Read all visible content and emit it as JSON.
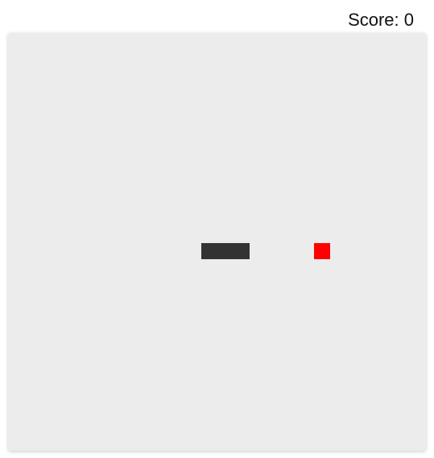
{
  "score": {
    "text": "Score: 0"
  },
  "game": {
    "grid_cells": 26,
    "snake_color": "#333333",
    "food_color": "#ff0000",
    "board_color": "#ececec",
    "snake": [
      {
        "col": 12,
        "row": 13
      },
      {
        "col": 13,
        "row": 13
      },
      {
        "col": 14,
        "row": 13
      }
    ],
    "food": {
      "col": 19,
      "row": 13
    }
  }
}
